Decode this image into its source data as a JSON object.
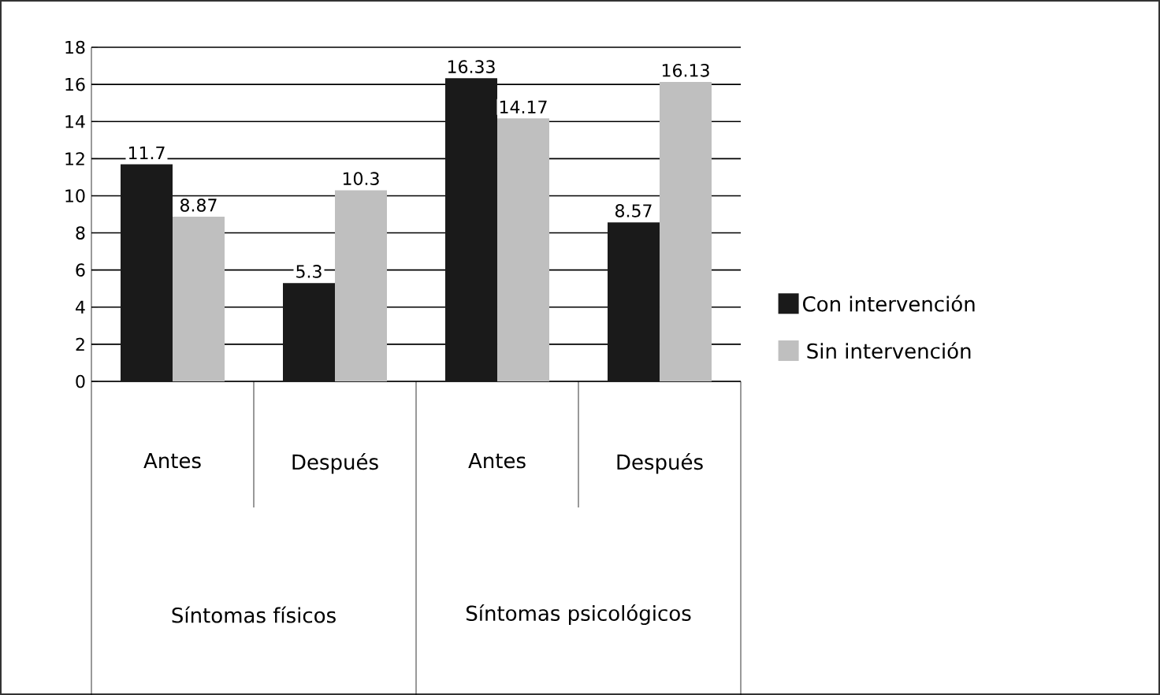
{
  "chart_data": {
    "type": "bar",
    "categories": [
      "Antes",
      "Después",
      "Antes",
      "Después"
    ],
    "series": [
      {
        "name": "Con intervención",
        "color": "#1a1a1a",
        "values": [
          11.7,
          5.3,
          16.33,
          8.57
        ]
      },
      {
        "name": "Sin intervención",
        "color": "#bfbfbf",
        "values": [
          8.87,
          10.3,
          14.17,
          16.13
        ]
      }
    ],
    "ylim": [
      0,
      18
    ],
    "yticks": [
      0,
      2,
      4,
      6,
      8,
      10,
      12,
      14,
      16,
      18
    ],
    "grid": "y",
    "legend": "right",
    "data_labels": true,
    "annotations": [
      "Síntomas físicos",
      "Síntomas psicológicos"
    ]
  }
}
